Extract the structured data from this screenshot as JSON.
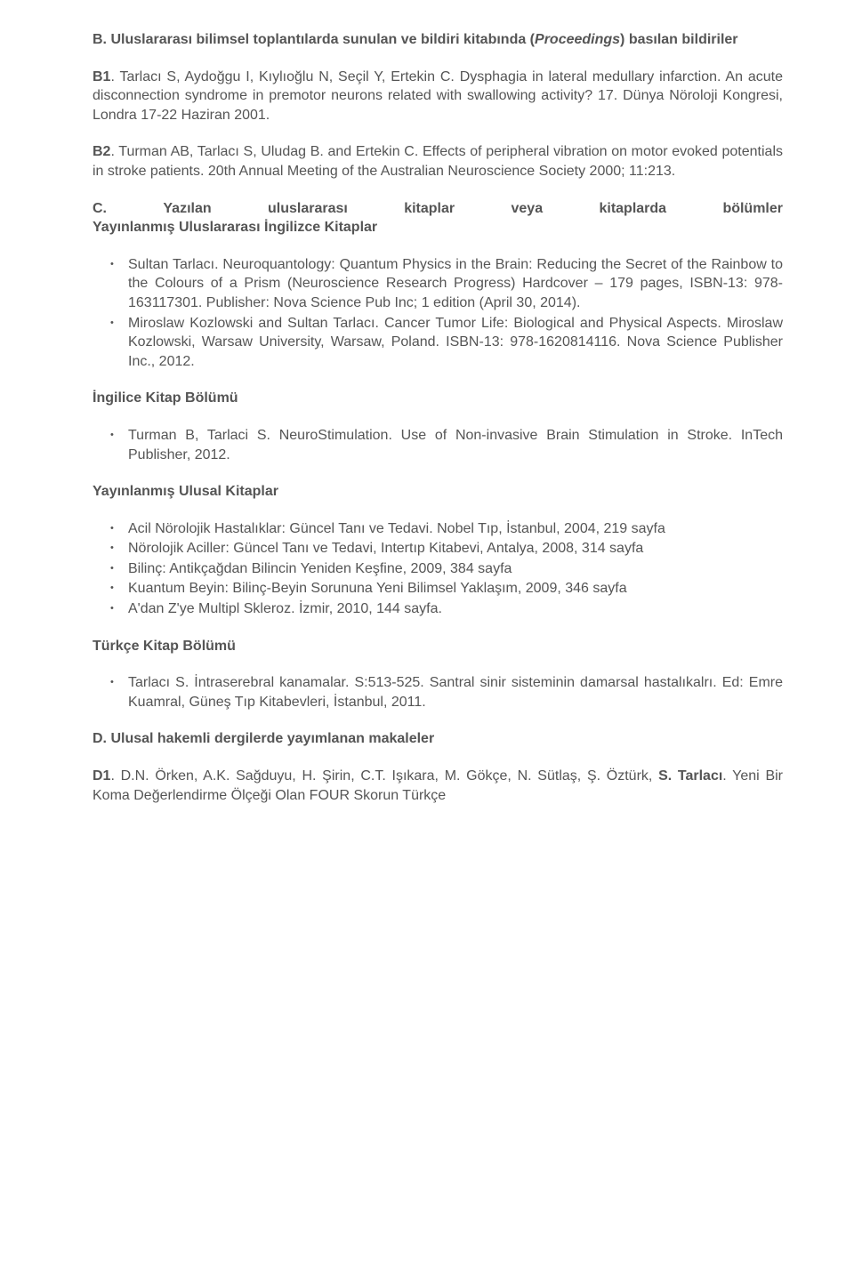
{
  "sectionB": {
    "title_prefix": "B. Uluslararası bilimsel toplantılarda sunulan ve bildiri kitabında (",
    "title_italic": "Proceedings",
    "title_suffix": ") basılan bildiriler",
    "b1_label": "B1",
    "b1_text": ". Tarlacı S, Aydoğgu I, Kıylıoğlu N, Seçil Y, Ertekin C. Dysphagia in lateral medullary infarction. An acute disconnection syndrome in premotor neurons related with swallowing activity? 17. Dünya Nöroloji Kongresi, Londra 17-22 Haziran 2001.",
    "b2_label": "B2",
    "b2_text": ". Turman AB, Tarlacı S, Uludag B. and Ertekin C. Effects of peripheral vibration on motor evoked potentials in stroke patients. 20th Annual Meeting of the Australian Neuroscience Society 2000; 11:213."
  },
  "sectionC": {
    "row": [
      "C.",
      "Yazılan",
      "uluslararası",
      "kitaplar",
      "veya",
      "kitaplarda",
      "bölümler"
    ],
    "subhead": "Yayınlanmış Uluslararası İngilizce Kitaplar",
    "items": [
      "Sultan Tarlacı. Neuroquantology: Quantum Physics in the Brain: Reducing the Secret of the Rainbow to the Colours of a Prism (Neuroscience Research Progress) Hardcover – 179 pages, ISBN-13: 978-163117301. Publisher: Nova Science Pub Inc; 1 edition (April 30, 2014).",
      "Miroslaw Kozlowski and Sultan Tarlacı. Cancer Tumor Life:  Biological and Physical Aspects. Miroslaw Kozlowski, Warsaw University, Warsaw, Poland. ISBN-13: 978-1620814116. Nova Science Publisher Inc., 2012."
    ]
  },
  "engChapter": {
    "heading": "İngilice Kitap Bölümü",
    "items": [
      "Turman B, Tarlaci S. NeuroStimulation. Use of Non-invasive Brain Stimulation in Stroke. InTech Publisher, 2012."
    ]
  },
  "national": {
    "heading": "Yayınlanmış Ulusal Kitaplar",
    "items": [
      "Acil Nörolojik Hastalıklar: Güncel Tanı ve Tedavi. Nobel Tıp, İstanbul, 2004, 219 sayfa",
      "Nörolojik Aciller: Güncel Tanı ve Tedavi,  Intertıp Kitabevi, Antalya, 2008, 314 sayfa",
      "Bilinç: Antikçağdan Bilincin Yeniden Keşfine, 2009, 384 sayfa",
      "Kuantum Beyin: Bilinç-Beyin Sorununa Yeni Bilimsel Yaklaşım, 2009, 346 sayfa",
      "A'dan Z'ye Multipl Skleroz. İzmir, 2010, 144 sayfa."
    ]
  },
  "trChapter": {
    "heading": "Türkçe Kitap Bölümü",
    "items": [
      "Tarlacı S. İntraserebral kanamalar. S:513-525. Santral sinir sisteminin damarsal hastalıkalrı. Ed: Emre Kuamral, Güneş Tıp Kitabevleri, İstanbul, 2011."
    ]
  },
  "sectionD": {
    "heading": "D. Ulusal hakemli dergilerde yayımlanan makaleler",
    "d1_label": "D1",
    "d1_mid": ". D.N. Örken, A.K. Sağduyu, H. Şirin, C.T. Işıkara, M. Gökçe, N. Sütlaş, Ş. Öztürk, ",
    "d1_bold": "S. Tarlacı",
    "d1_after": ". Yeni Bir Koma Değerlendirme Ölçeği Olan FOUR Skorun Türkçe"
  }
}
